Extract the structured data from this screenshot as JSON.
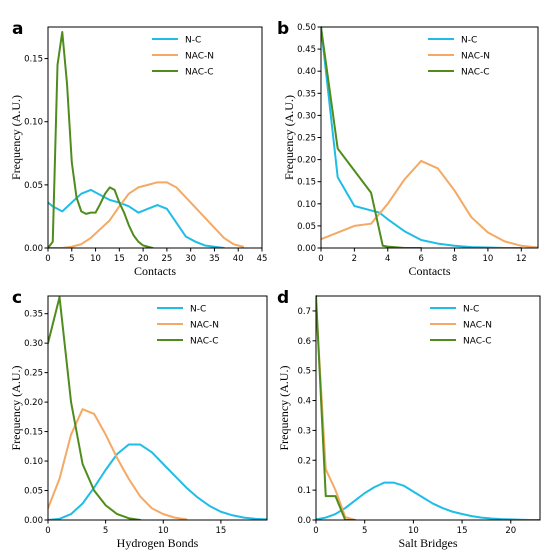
{
  "colors": {
    "N-C": "#1fbde6",
    "NAC-N": "#f4a964",
    "NAC-C": "#4f8c1c"
  },
  "chart_data": [
    {
      "type": "line",
      "panel_label": "a",
      "xlabel": "Contacts",
      "ylabel": "Frequency (A.U.)",
      "xlim": [
        0,
        45
      ],
      "ylim": [
        0,
        0.175
      ],
      "xticks": [
        0,
        5,
        10,
        15,
        20,
        25,
        30,
        35,
        40,
        45
      ],
      "yticks": [
        0.0,
        0.05,
        0.1,
        0.15
      ],
      "yticklabels": [
        "0.00",
        "0.05",
        "0.10",
        "0.15"
      ],
      "legend": "top-right",
      "series": [
        {
          "name": "N-C",
          "x": [
            0,
            1,
            3,
            5,
            7,
            9,
            11,
            13,
            15,
            17,
            19,
            21,
            23,
            25,
            27,
            29,
            31,
            33,
            35,
            37
          ],
          "y": [
            0.036,
            0.033,
            0.029,
            0.036,
            0.043,
            0.046,
            0.042,
            0.038,
            0.036,
            0.033,
            0.028,
            0.031,
            0.034,
            0.031,
            0.02,
            0.009,
            0.005,
            0.002,
            0.001,
            0.0
          ]
        },
        {
          "name": "NAC-N",
          "x": [
            0,
            3,
            5,
            7,
            9,
            11,
            13,
            15,
            17,
            19,
            21,
            23,
            25,
            27,
            29,
            31,
            33,
            35,
            37,
            39,
            41
          ],
          "y": [
            0.0,
            0.0,
            0.001,
            0.003,
            0.008,
            0.015,
            0.022,
            0.033,
            0.043,
            0.048,
            0.05,
            0.052,
            0.052,
            0.048,
            0.04,
            0.032,
            0.024,
            0.016,
            0.008,
            0.003,
            0.001
          ]
        },
        {
          "name": "NAC-C",
          "x": [
            0,
            1,
            2,
            3,
            4,
            5,
            6,
            7,
            8,
            9,
            10,
            11,
            12,
            13,
            14,
            15,
            16,
            17,
            18,
            19,
            20,
            21,
            22
          ],
          "y": [
            0.0,
            0.005,
            0.145,
            0.171,
            0.13,
            0.068,
            0.04,
            0.029,
            0.027,
            0.028,
            0.028,
            0.035,
            0.043,
            0.048,
            0.046,
            0.036,
            0.028,
            0.018,
            0.01,
            0.005,
            0.002,
            0.001,
            0.0
          ]
        }
      ]
    },
    {
      "type": "line",
      "panel_label": "b",
      "xlabel": "Contacts",
      "ylabel": "Frequency (A.U.)",
      "xlim": [
        0,
        13
      ],
      "ylim": [
        0,
        0.5
      ],
      "xticks": [
        0,
        2,
        4,
        6,
        8,
        10,
        12
      ],
      "yticks": [
        0.0,
        0.05,
        0.1,
        0.15,
        0.2,
        0.25,
        0.3,
        0.35,
        0.4,
        0.45,
        0.5
      ],
      "yticklabels": [
        "0.00",
        "0.05",
        "0.10",
        "0.15",
        "0.20",
        "0.25",
        "0.30",
        "0.35",
        "0.40",
        "0.45",
        "0.50"
      ],
      "legend": "top-right",
      "series": [
        {
          "name": "N-C",
          "x": [
            0,
            1,
            2,
            3,
            3.5,
            4,
            5,
            6,
            7,
            8,
            9,
            10,
            11,
            12
          ],
          "y": [
            0.5,
            0.16,
            0.095,
            0.085,
            0.08,
            0.065,
            0.038,
            0.018,
            0.01,
            0.005,
            0.002,
            0.001,
            0.0,
            0.0
          ]
        },
        {
          "name": "NAC-N",
          "x": [
            0,
            1,
            2,
            3,
            4,
            5,
            6,
            7,
            8,
            9,
            10,
            11,
            12,
            13
          ],
          "y": [
            0.02,
            0.035,
            0.05,
            0.055,
            0.1,
            0.155,
            0.197,
            0.18,
            0.13,
            0.07,
            0.035,
            0.015,
            0.005,
            0.001
          ]
        },
        {
          "name": "NAC-C",
          "x": [
            0,
            1,
            2,
            3,
            3.7,
            4,
            5,
            6
          ],
          "y": [
            0.5,
            0.225,
            0.175,
            0.125,
            0.005,
            0.003,
            0.0,
            0.0
          ]
        }
      ]
    },
    {
      "type": "line",
      "panel_label": "c",
      "xlabel": "Hydrogen Bonds",
      "ylabel": "Frequency (A.U.)",
      "xlim": [
        0,
        19
      ],
      "ylim": [
        0,
        0.38
      ],
      "xticks": [
        0,
        5,
        10,
        15
      ],
      "yticks": [
        0.0,
        0.05,
        0.1,
        0.15,
        0.2,
        0.25,
        0.3,
        0.35
      ],
      "yticklabels": [
        "0.00",
        "0.05",
        "0.10",
        "0.15",
        "0.20",
        "0.25",
        "0.30",
        "0.35"
      ],
      "legend": "top-right",
      "series": [
        {
          "name": "N-C",
          "x": [
            0,
            1,
            2,
            3,
            4,
            5,
            6,
            7,
            8,
            9,
            10,
            11,
            12,
            13,
            14,
            15,
            16,
            17,
            18,
            19
          ],
          "y": [
            0.0,
            0.002,
            0.01,
            0.028,
            0.055,
            0.085,
            0.112,
            0.128,
            0.128,
            0.115,
            0.095,
            0.075,
            0.055,
            0.038,
            0.024,
            0.014,
            0.008,
            0.004,
            0.002,
            0.001
          ]
        },
        {
          "name": "NAC-N",
          "x": [
            0,
            1,
            2,
            3,
            4,
            5,
            6,
            7,
            8,
            9,
            10,
            11,
            12
          ],
          "y": [
            0.02,
            0.07,
            0.145,
            0.188,
            0.18,
            0.145,
            0.105,
            0.07,
            0.04,
            0.02,
            0.01,
            0.004,
            0.001
          ]
        },
        {
          "name": "NAC-C",
          "x": [
            0,
            1,
            2,
            3,
            4,
            5,
            6,
            7,
            8
          ],
          "y": [
            0.3,
            0.378,
            0.2,
            0.095,
            0.05,
            0.025,
            0.01,
            0.003,
            0.0
          ]
        }
      ]
    },
    {
      "type": "line",
      "panel_label": "d",
      "xlabel": "Salt Bridges",
      "ylabel": "Frequency (A.U.)",
      "xlim": [
        0,
        23
      ],
      "ylim": [
        0,
        0.75
      ],
      "xticks": [
        0,
        5,
        10,
        15,
        20
      ],
      "yticks": [
        0.0,
        0.1,
        0.2,
        0.3,
        0.4,
        0.5,
        0.6,
        0.7
      ],
      "yticklabels": [
        "0.0",
        "0.1",
        "0.2",
        "0.3",
        "0.4",
        "0.5",
        "0.6",
        "0.7"
      ],
      "legend": "top-right",
      "series": [
        {
          "name": "N-C",
          "x": [
            0,
            1,
            2,
            3,
            4,
            5,
            6,
            7,
            8,
            9,
            10,
            11,
            12,
            13,
            14,
            15,
            16,
            17,
            18,
            19,
            20,
            21,
            22,
            23
          ],
          "y": [
            0.002,
            0.008,
            0.02,
            0.04,
            0.065,
            0.09,
            0.11,
            0.125,
            0.125,
            0.115,
            0.095,
            0.075,
            0.055,
            0.04,
            0.028,
            0.02,
            0.013,
            0.008,
            0.005,
            0.003,
            0.002,
            0.001,
            0.0,
            0.0
          ]
        },
        {
          "name": "NAC-N",
          "x": [
            0,
            1,
            2,
            3,
            4
          ],
          "y": [
            0.73,
            0.17,
            0.1,
            0.01,
            0.0
          ]
        },
        {
          "name": "NAC-C",
          "x": [
            0,
            1,
            2,
            3,
            4
          ],
          "y": [
            0.75,
            0.08,
            0.08,
            0.0,
            0.0
          ]
        }
      ]
    }
  ]
}
